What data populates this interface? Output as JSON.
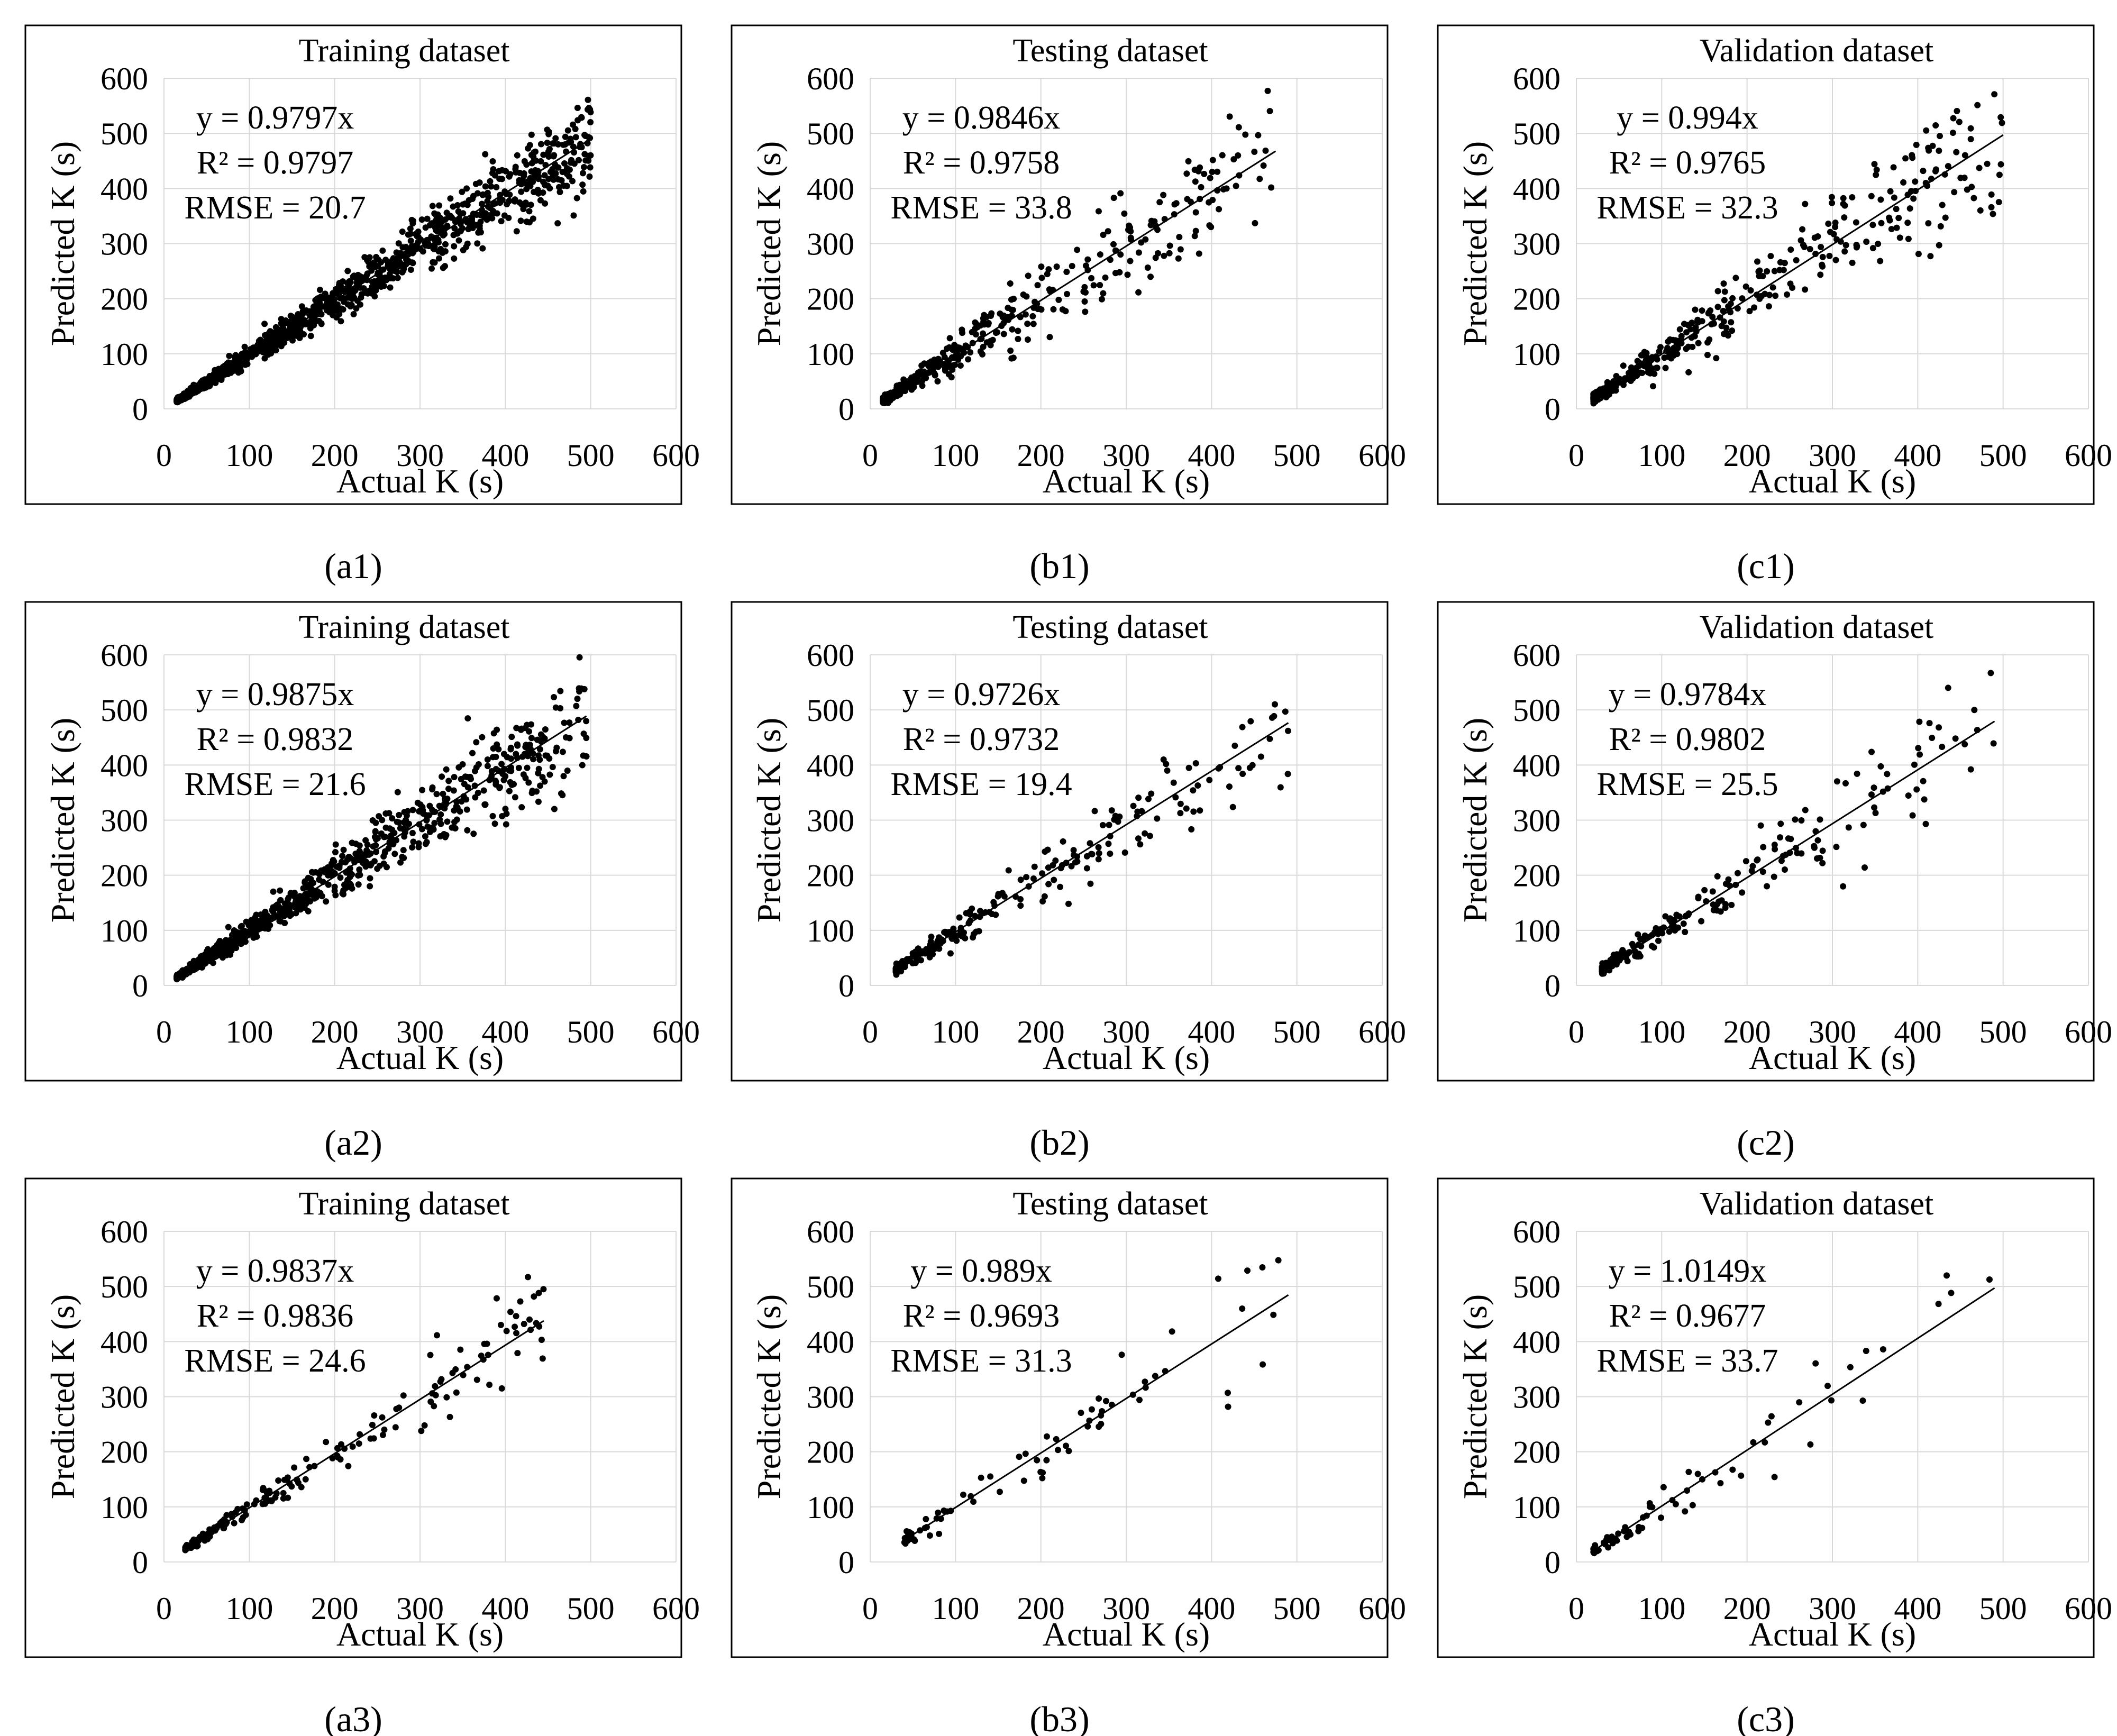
{
  "figure": {
    "title": ""
  },
  "axis_defaults": {
    "xlabel": "Actual K (s)",
    "ylabel": "Predicted K (s)",
    "xlim": [
      0,
      600
    ],
    "ylim": [
      0,
      600
    ],
    "ticks": [
      0,
      100,
      200,
      300,
      400,
      500,
      600
    ],
    "grid": true
  },
  "chart_data": [
    {
      "id": "a1",
      "type": "scatter",
      "title": "Training dataset",
      "xlabel": "Actual K (s)",
      "ylabel": "Predicted K (s)",
      "xlim": [
        0,
        600
      ],
      "ylim": [
        0,
        600
      ],
      "grid": true,
      "equation": "y = 0.9797x",
      "r2": "R² = 0.9797",
      "rmse": "RMSE = 20.7",
      "slope": 0.9797,
      "line_x_range": [
        15,
        500
      ],
      "point_count": 1400,
      "noise": 0.09,
      "x_range": [
        15,
        500
      ],
      "seed": 11,
      "caption": "(a1)"
    },
    {
      "id": "b1",
      "type": "scatter",
      "title": "Testing dataset",
      "xlabel": "Actual K (s)",
      "ylabel": "Predicted K (s)",
      "xlim": [
        0,
        600
      ],
      "ylim": [
        0,
        600
      ],
      "grid": true,
      "equation": "y = 0.9846x",
      "r2": "R² = 0.9758",
      "rmse": "RMSE = 33.8",
      "slope": 0.9846,
      "line_x_range": [
        15,
        475
      ],
      "point_count": 420,
      "noise": 0.16,
      "x_range": [
        15,
        475
      ],
      "seed": 22,
      "caption": "(b1)"
    },
    {
      "id": "c1",
      "type": "scatter",
      "title": "Validation dataset",
      "xlabel": "Actual K (s)",
      "ylabel": "Predicted K (s)",
      "xlim": [
        0,
        600
      ],
      "ylim": [
        0,
        600
      ],
      "grid": true,
      "equation": "y = 0.994x",
      "r2": "R² = 0.9765",
      "rmse": "RMSE = 32.3",
      "slope": 0.994,
      "line_x_range": [
        20,
        500
      ],
      "point_count": 420,
      "noise": 0.16,
      "x_range": [
        20,
        500
      ],
      "seed": 33,
      "caption": "(c1)"
    },
    {
      "id": "a2",
      "type": "scatter",
      "title": "Training dataset",
      "xlabel": "Actual K (s)",
      "ylabel": "Predicted K (s)",
      "xlim": [
        0,
        600
      ],
      "ylim": [
        0,
        600
      ],
      "grid": true,
      "equation": "y = 0.9875x",
      "r2": "R² = 0.9832",
      "rmse": "RMSE = 21.6",
      "slope": 0.9875,
      "line_x_range": [
        15,
        495
      ],
      "point_count": 1000,
      "noise": 0.11,
      "x_range": [
        15,
        495
      ],
      "seed": 44,
      "caption": "(a2)"
    },
    {
      "id": "b2",
      "type": "scatter",
      "title": "Testing dataset",
      "xlabel": "Actual K (s)",
      "ylabel": "Predicted K (s)",
      "xlim": [
        0,
        600
      ],
      "ylim": [
        0,
        600
      ],
      "grid": true,
      "equation": "y = 0.9726x",
      "r2": "R² = 0.9732",
      "rmse": "RMSE = 19.4",
      "slope": 0.9726,
      "line_x_range": [
        30,
        490
      ],
      "point_count": 240,
      "noise": 0.13,
      "x_range": [
        30,
        490
      ],
      "seed": 55,
      "caption": "(b2)"
    },
    {
      "id": "c2",
      "type": "scatter",
      "title": "Validation dataset",
      "xlabel": "Actual K (s)",
      "ylabel": "Predicted K (s)",
      "xlim": [
        0,
        600
      ],
      "ylim": [
        0,
        600
      ],
      "grid": true,
      "equation": "y = 0.9784x",
      "r2": "R² = 0.9802",
      "rmse": "RMSE = 25.5",
      "slope": 0.9784,
      "line_x_range": [
        30,
        490
      ],
      "point_count": 240,
      "noise": 0.13,
      "x_range": [
        30,
        490
      ],
      "seed": 66,
      "caption": "(c2)"
    },
    {
      "id": "a3",
      "type": "scatter",
      "title": "Training dataset",
      "xlabel": "Actual K (s)",
      "ylabel": "Predicted K (s)",
      "xlim": [
        0,
        600
      ],
      "ylim": [
        0,
        600
      ],
      "grid": true,
      "equation": "y = 0.9837x",
      "r2": "R² = 0.9836",
      "rmse": "RMSE = 24.6",
      "slope": 0.9837,
      "line_x_range": [
        25,
        445
      ],
      "point_count": 200,
      "noise": 0.11,
      "x_range": [
        25,
        445
      ],
      "seed": 77,
      "caption": "(a3)"
    },
    {
      "id": "b3",
      "type": "scatter",
      "title": "Testing dataset",
      "xlabel": "Actual K (s)",
      "ylabel": "Predicted K (s)",
      "xlim": [
        0,
        600
      ],
      "ylim": [
        0,
        600
      ],
      "grid": true,
      "equation": "y = 0.989x",
      "r2": "R² = 0.9693",
      "rmse": "RMSE = 31.3",
      "slope": 0.989,
      "line_x_range": [
        40,
        490
      ],
      "point_count": 75,
      "noise": 0.14,
      "x_range": [
        40,
        490
      ],
      "seed": 88,
      "caption": "(b3)"
    },
    {
      "id": "c3",
      "type": "scatter",
      "title": "Validation dataset",
      "xlabel": "Actual K (s)",
      "ylabel": "Predicted K (s)",
      "xlim": [
        0,
        600
      ],
      "ylim": [
        0,
        600
      ],
      "grid": true,
      "equation": "y = 1.0149x",
      "r2": "R² = 0.9677",
      "rmse": "RMSE = 33.7",
      "slope": 1.0149,
      "line_x_range": [
        20,
        490
      ],
      "point_count": 75,
      "noise": 0.15,
      "x_range": [
        20,
        490
      ],
      "seed": 99,
      "caption": "(c3)"
    }
  ],
  "colors": {
    "points": "#000000",
    "grid": "#d9d9d9",
    "line": "#000000",
    "frame": "#000000"
  }
}
